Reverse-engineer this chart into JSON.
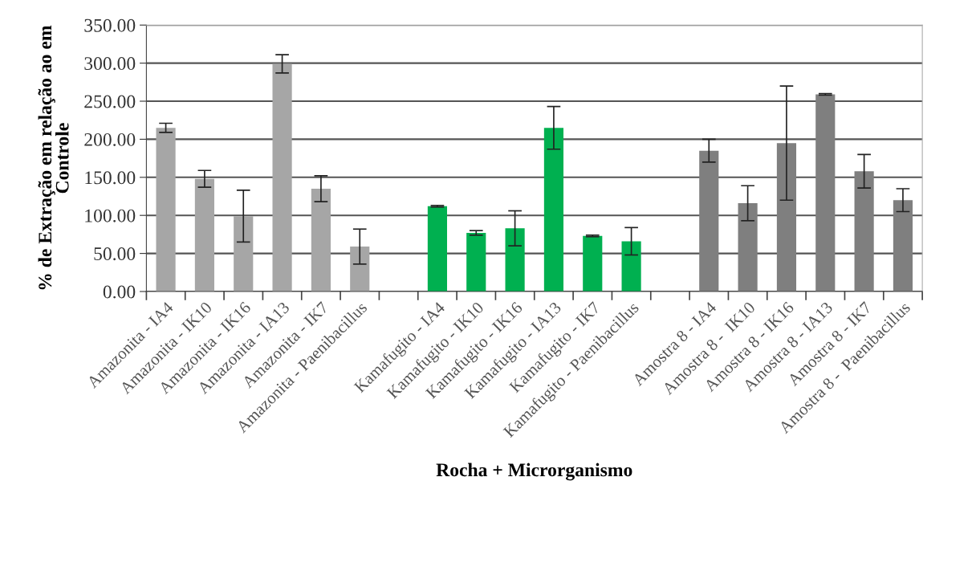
{
  "chart_data": {
    "type": "bar",
    "xlabel": "Rocha + Microrganismo",
    "ylabel": "% de Extração em relação ao em\nControle",
    "categories": [
      "Amazonita - IA4",
      "Amazonita - IK10",
      "Amazonita - IK16",
      "Amazonita - IA13",
      "Amazonita - IK7",
      "Amazonita - Paenibacillus",
      null,
      "Kamafugito - IA4",
      "Kamafugito - IK10",
      "Kamafugito - IK16",
      "Kamafugito - IA13",
      "Kamafugito - IK7",
      "Kamafugito - Paenibacillus",
      null,
      "Amostra 8 - IA4",
      "Amostra 8 -  IK10",
      "Amostra 8 - IK16",
      "Amostra 8 - IA13",
      "Amostra 8 - IK7",
      "Amostra 8 -  Paenibacillus"
    ],
    "values": [
      215,
      148,
      99,
      299,
      135,
      59,
      null,
      112,
      77,
      83,
      215,
      73,
      66,
      null,
      185,
      116,
      195,
      259,
      158,
      120
    ],
    "errors": [
      6,
      11,
      34,
      12,
      17,
      23,
      null,
      1,
      3,
      23,
      28,
      1,
      18,
      null,
      15,
      23,
      75,
      1,
      22,
      15
    ],
    "colors": [
      "#a6a6a6",
      "#a6a6a6",
      "#a6a6a6",
      "#a6a6a6",
      "#a6a6a6",
      "#a6a6a6",
      "#a6a6a6",
      "#00b050",
      "#00b050",
      "#00b050",
      "#00b050",
      "#00b050",
      "#00b050",
      "#00b050",
      "#7f7f7f",
      "#7f7f7f",
      "#7f7f7f",
      "#7f7f7f",
      "#7f7f7f",
      "#7f7f7f"
    ],
    "ylim": [
      0,
      350
    ],
    "yticks": [
      {
        "value": 0,
        "label": "0.00"
      },
      {
        "value": 50,
        "label": "50.00"
      },
      {
        "value": 100,
        "label": "100.00"
      },
      {
        "value": 150,
        "label": "150.00"
      },
      {
        "value": 200,
        "label": "200.00"
      },
      {
        "value": 250,
        "label": "250.00"
      },
      {
        "value": 300,
        "label": "300.00"
      },
      {
        "value": 350,
        "label": "350.00"
      }
    ],
    "grid": "y"
  }
}
